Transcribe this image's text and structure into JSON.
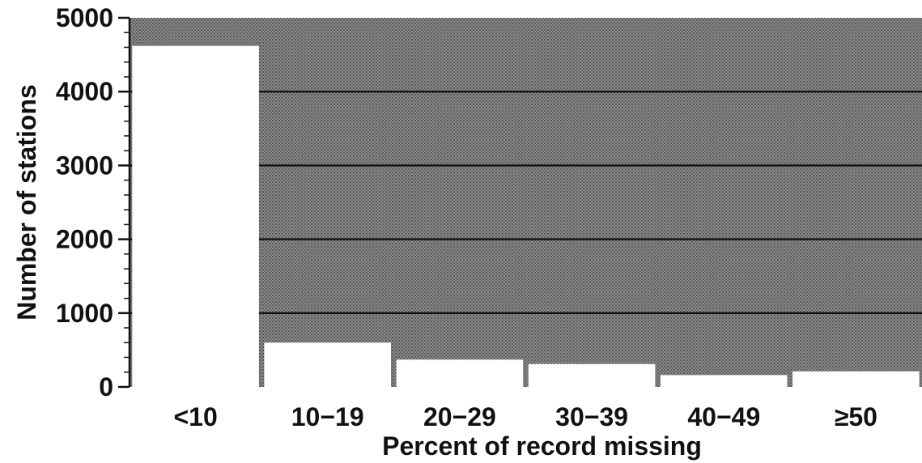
{
  "chart_data": {
    "type": "bar",
    "title": "",
    "xlabel": "Percent of record missing",
    "ylabel": "Number of stations",
    "categories": [
      "<10",
      "10−19",
      "20−29",
      "30−39",
      "40−49",
      "≥50"
    ],
    "values": [
      4620,
      600,
      370,
      310,
      160,
      210
    ],
    "ylim": [
      0,
      5000
    ],
    "yticks": [
      0,
      1000,
      2000,
      3000,
      4000,
      5000
    ],
    "gridlines": [
      1000,
      2000,
      3000,
      4000
    ],
    "grid": true,
    "legend": "none",
    "colors": {
      "plot_background": "#7a7a7a",
      "bars": "#ffffff",
      "gridlines": "#111111",
      "text": "#111111"
    }
  }
}
